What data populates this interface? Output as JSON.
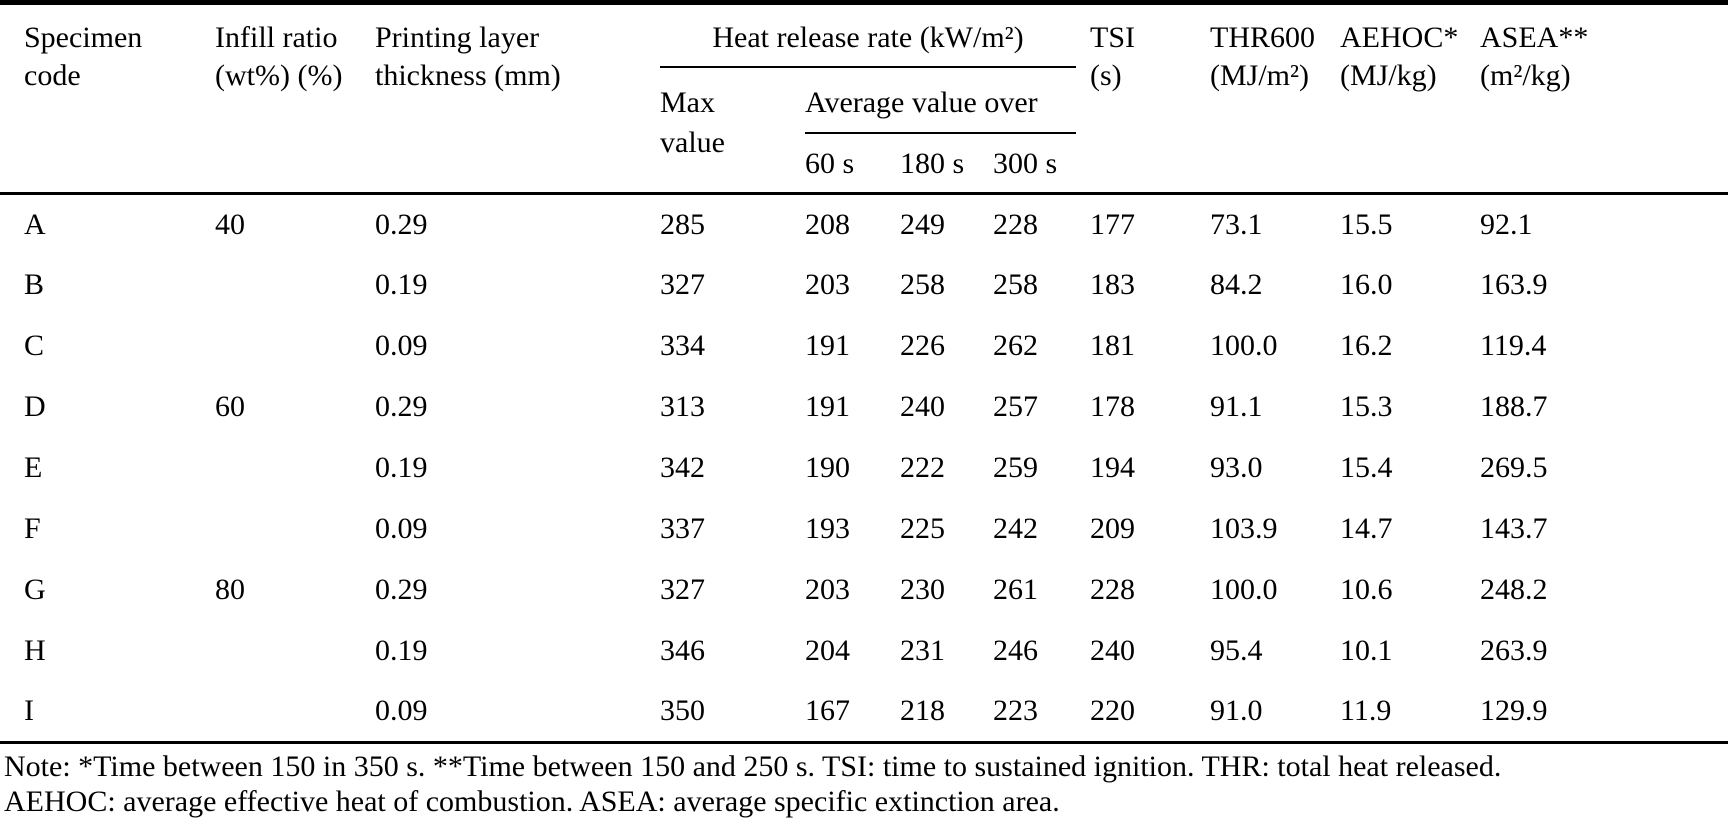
{
  "colors": {
    "background": "#ffffff",
    "text": "#000000",
    "rule": "#000000"
  },
  "table": {
    "header": {
      "specimen_code": "Specimen\ncode",
      "infill_ratio": "Infill ratio\n(wt%) (%)",
      "layer_thickness": "Printing layer\nthickness (mm)",
      "hrr_group": "Heat release rate (kW/m²)",
      "hrr_max": "Max\nvalue",
      "avg_group": "Average value over",
      "avg_60": "60 s",
      "avg_180": "180 s",
      "avg_300": "300 s",
      "tsi": "TSI\n(s)",
      "thr600": "THR600\n(MJ/m²)",
      "aehoc": "AEHOC*\n(MJ/kg)",
      "asea": "ASEA**\n(m²/kg)"
    },
    "column_keys": [
      "specimen-code",
      "infill-ratio",
      "layer-thickness",
      "hrr-max",
      "hrr-avg-60s",
      "hrr-avg-180s",
      "hrr-avg-300s",
      "tsi",
      "thr600",
      "aehoc",
      "asea"
    ],
    "rows": [
      [
        "A",
        "40",
        "0.29",
        "285",
        "208",
        "249",
        "228",
        "177",
        "73.1",
        "15.5",
        "92.1"
      ],
      [
        "B",
        "",
        "0.19",
        "327",
        "203",
        "258",
        "258",
        "183",
        "84.2",
        "16.0",
        "163.9"
      ],
      [
        "C",
        "",
        "0.09",
        "334",
        "191",
        "226",
        "262",
        "181",
        "100.0",
        "16.2",
        "119.4"
      ],
      [
        "D",
        "60",
        "0.29",
        "313",
        "191",
        "240",
        "257",
        "178",
        "91.1",
        "15.3",
        "188.7"
      ],
      [
        "E",
        "",
        "0.19",
        "342",
        "190",
        "222",
        "259",
        "194",
        "93.0",
        "15.4",
        "269.5"
      ],
      [
        "F",
        "",
        "0.09",
        "337",
        "193",
        "225",
        "242",
        "209",
        "103.9",
        "14.7",
        "143.7"
      ],
      [
        "G",
        "80",
        "0.29",
        "327",
        "203",
        "230",
        "261",
        "228",
        "100.0",
        "10.6",
        "248.2"
      ],
      [
        "H",
        "",
        "0.19",
        "346",
        "204",
        "231",
        "246",
        "240",
        "95.4",
        "10.1",
        "263.9"
      ],
      [
        "I",
        "",
        "0.09",
        "350",
        "167",
        "218",
        "223",
        "220",
        "91.0",
        "11.9",
        "129.9"
      ]
    ]
  },
  "notes": {
    "line1": "Note: *Time between 150 in 350 s. **Time between 150 and 250 s. TSI: time to sustained ignition. THR: total heat released.",
    "line2": "AEHOC: average effective heat of combustion. ASEA: average specific extinction area."
  }
}
